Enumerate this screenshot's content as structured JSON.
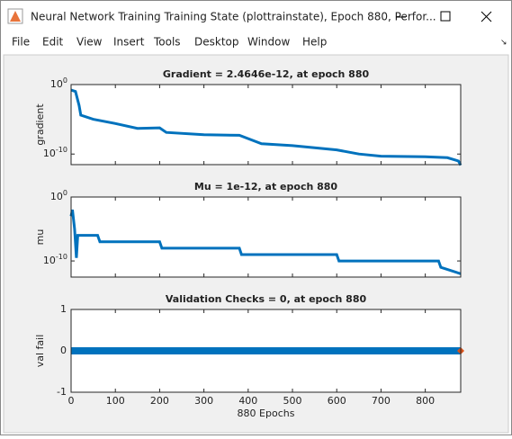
{
  "window": {
    "title": "Neural Network Training Training State (plottrainstate), Epoch 880, Perfor...",
    "menu": [
      "File",
      "Edit",
      "View",
      "Insert",
      "Tools",
      "Desktop",
      "Window",
      "Help"
    ]
  },
  "chart_data": [
    {
      "type": "line",
      "title": "Gradient = 2.4646e-12, at epoch 880",
      "ylabel": "gradient",
      "log_y": true,
      "color": "#0072bd",
      "x": [
        0,
        10,
        18,
        22,
        50,
        100,
        150,
        200,
        215,
        300,
        380,
        430,
        500,
        600,
        650,
        700,
        800,
        850,
        875,
        880
      ],
      "values": [
        0.16,
        0.1,
        0.001,
        4e-05,
        1e-05,
        2.5e-06,
        5e-07,
        6e-07,
        1.3e-07,
        6e-08,
        5e-08,
        3e-09,
        1.6e-09,
        4e-10,
        1e-10,
        5e-11,
        4e-11,
        3e-11,
        1e-11,
        2.4646e-12
      ],
      "xlim": [
        0,
        880
      ],
      "xticks": [
        0,
        100,
        200,
        300,
        400,
        500,
        600,
        700,
        800
      ],
      "xtick_labels": false,
      "ylim": [
        3e-12,
        1
      ],
      "yticks": [
        {
          "value": 1,
          "label": "10",
          "exponent": "0"
        },
        {
          "value": 1e-10,
          "label": "10",
          "exponent": "-10"
        }
      ]
    },
    {
      "type": "line",
      "title": "Mu = 1e-12, at epoch 880",
      "ylabel": "mu",
      "log_y": true,
      "color": "#0072bd",
      "x": [
        0,
        3,
        8,
        12,
        15,
        60,
        65,
        200,
        205,
        380,
        385,
        600,
        605,
        830,
        835,
        880
      ],
      "values": [
        0.001,
        0.01,
        1e-05,
        3e-10,
        1e-06,
        1e-06,
        1e-07,
        1e-07,
        1e-08,
        1e-08,
        1e-09,
        1e-09,
        1e-10,
        1e-10,
        1e-11,
        1e-12
      ],
      "xlim": [
        0,
        880
      ],
      "xticks": [
        0,
        100,
        200,
        300,
        400,
        500,
        600,
        700,
        800
      ],
      "xtick_labels": false,
      "ylim": [
        3e-13,
        1
      ],
      "yticks": [
        {
          "value": 1,
          "label": "10",
          "exponent": "0"
        },
        {
          "value": 1e-10,
          "label": "10",
          "exponent": "-10"
        }
      ]
    },
    {
      "type": "line",
      "title": "Validation Checks = 0, at epoch 880",
      "ylabel": "val fail",
      "xlabel": "880 Epochs",
      "log_y": false,
      "color": "#0072bd",
      "x": [
        0,
        880
      ],
      "values": [
        0,
        0
      ],
      "marker": {
        "x": 880,
        "value": 0,
        "color": "#d95319"
      },
      "xlim": [
        0,
        880
      ],
      "xticks": [
        0,
        100,
        200,
        300,
        400,
        500,
        600,
        700,
        800
      ],
      "xtick_labels": true,
      "ylim": [
        -1,
        1
      ],
      "yticks": [
        -1,
        0,
        1
      ]
    }
  ]
}
